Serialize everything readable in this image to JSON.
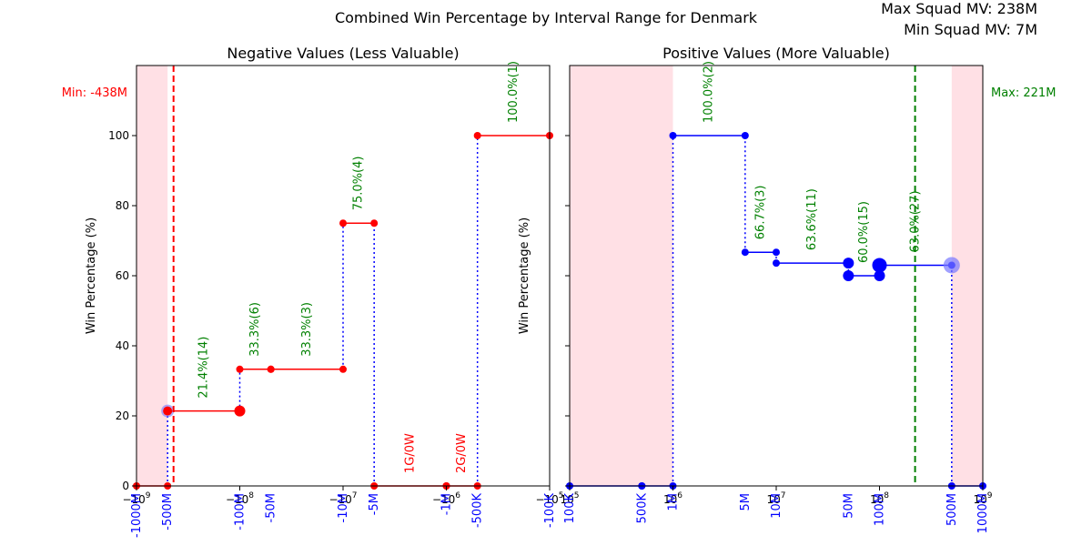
{
  "figure": {
    "title": "Combined Win Percentage by Interval Range for Denmark",
    "max_squad_mv": "Max Squad MV: 238M",
    "min_squad_mv": "Min Squad MV: 7M"
  },
  "colors": {
    "negative_line": "#ff0000",
    "positive_line": "#0000ff",
    "connector": "#0000ff",
    "pct_label": "#008000",
    "empty_label": "#ff0000",
    "shade": "#ffdde2",
    "tick_label": "#0000ff"
  },
  "chart_data": [
    {
      "type": "line",
      "subtitle": "Negative Values (Less Valuable)",
      "xscale": "symlog-negative",
      "xlim": [
        -1000000000,
        -100000
      ],
      "ylim": [
        0,
        100
      ],
      "ylabel": "Win Percentage (%)",
      "yticks": [
        0,
        20,
        40,
        60,
        80,
        100
      ],
      "xticks": [
        {
          "v": -1000000000,
          "label": "−10^9"
        },
        {
          "v": -100000000,
          "label": "−10^8"
        },
        {
          "v": -10000000,
          "label": "−10^7"
        },
        {
          "v": -1000000,
          "label": "−10^6"
        },
        {
          "v": -100000,
          "label": "−10^5"
        }
      ],
      "boundary_labels": [
        {
          "v": -1000000000,
          "label": "-1000M"
        },
        {
          "v": -500000000,
          "label": "-500M"
        },
        {
          "v": -100000000,
          "label": "-100M"
        },
        {
          "v": -50000000,
          "label": "-50M"
        },
        {
          "v": -10000000,
          "label": "-10M"
        },
        {
          "v": -5000000,
          "label": "-5M"
        },
        {
          "v": -1000000,
          "label": "-1M"
        },
        {
          "v": -500000,
          "label": "-500K"
        },
        {
          "v": -100000,
          "label": "-100K"
        }
      ],
      "min_line": {
        "v": -438000000,
        "label": "Min: -438M"
      },
      "shaded_ranges": [
        [
          -1000000000,
          -500000000
        ]
      ],
      "segments": [
        {
          "x0": -1000000000,
          "x1": -500000000,
          "pct": 0,
          "label": ""
        },
        {
          "x0": -500000000,
          "x1": -100000000,
          "pct": 21.4,
          "label": "21.4%(14)"
        },
        {
          "x0": -100000000,
          "x1": -50000000,
          "pct": 33.3,
          "label": "33.3%(6)"
        },
        {
          "x0": -50000000,
          "x1": -10000000,
          "pct": 33.3,
          "label": "33.3%(3)"
        },
        {
          "x0": -10000000,
          "x1": -5000000,
          "pct": 75.0,
          "label": "75.0%(4)"
        },
        {
          "x0": -5000000,
          "x1": -1000000,
          "pct": 0,
          "label": "1G/0W"
        },
        {
          "x0": -1000000,
          "x1": -500000,
          "pct": 0,
          "label": "2G/0W"
        },
        {
          "x0": -500000,
          "x1": -100000,
          "pct": 100.0,
          "label": "100.0%(1)"
        }
      ]
    },
    {
      "type": "line",
      "subtitle": "Positive Values (More Valuable)",
      "xscale": "log",
      "xlim": [
        100000,
        1000000000
      ],
      "ylim": [
        0,
        100
      ],
      "ylabel": "Win Percentage (%)",
      "yticks": [
        0,
        20,
        40,
        60,
        80,
        100
      ],
      "xticks": [
        {
          "v": 100000,
          "label": "10^5"
        },
        {
          "v": 1000000,
          "label": "10^6"
        },
        {
          "v": 10000000,
          "label": "10^7"
        },
        {
          "v": 100000000,
          "label": "10^8"
        },
        {
          "v": 1000000000,
          "label": "10^9"
        }
      ],
      "boundary_labels": [
        {
          "v": 100000,
          "label": "100K"
        },
        {
          "v": 500000,
          "label": "500K"
        },
        {
          "v": 1000000,
          "label": "1M"
        },
        {
          "v": 5000000,
          "label": "5M"
        },
        {
          "v": 10000000,
          "label": "10M"
        },
        {
          "v": 50000000,
          "label": "50M"
        },
        {
          "v": 100000000,
          "label": "100M"
        },
        {
          "v": 500000000,
          "label": "500M"
        },
        {
          "v": 1000000000,
          "label": "1000M"
        }
      ],
      "max_line": {
        "v": 221000000,
        "label": "Max: 221M"
      },
      "shaded_ranges": [
        [
          100000,
          1000000
        ],
        [
          500000000,
          1000000000
        ]
      ],
      "segments": [
        {
          "x0": 100000,
          "x1": 500000,
          "pct": 0,
          "label": ""
        },
        {
          "x0": 500000,
          "x1": 1000000,
          "pct": 0,
          "label": ""
        },
        {
          "x0": 1000000,
          "x1": 5000000,
          "pct": 100.0,
          "label": "100.0%(2)"
        },
        {
          "x0": 5000000,
          "x1": 10000000,
          "pct": 66.7,
          "label": "66.7%(3)"
        },
        {
          "x0": 10000000,
          "x1": 50000000,
          "pct": 63.6,
          "label": "63.6%(11)"
        },
        {
          "x0": 50000000,
          "x1": 100000000,
          "pct": 60.0,
          "label": "60.0%(15)"
        },
        {
          "x0": 100000000,
          "x1": 500000000,
          "pct": 63.0,
          "label": "63.0%(27)"
        },
        {
          "x0": 500000000,
          "x1": 1000000000,
          "pct": 0,
          "label": ""
        }
      ]
    }
  ]
}
